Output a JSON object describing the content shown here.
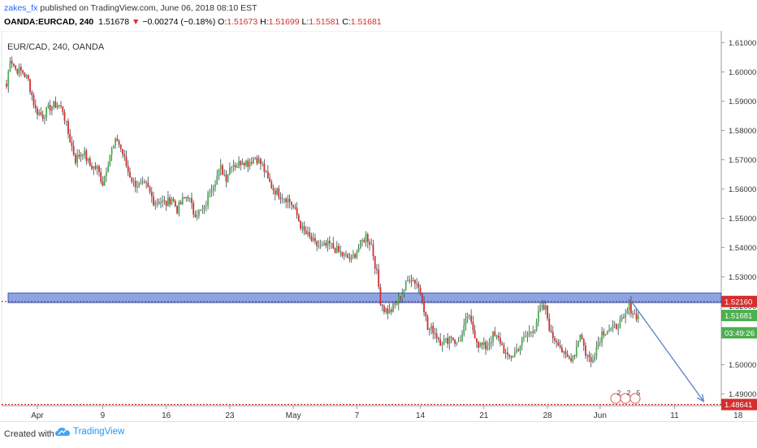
{
  "header": {
    "author": "zakes_fx",
    "published_text": "published on TradingView.com, June 06, 2018 08:10 EST",
    "symbol_interval": "OANDA:EURCAD, 240",
    "last": "1.51678",
    "change": "−0.00274 (−0.18%)",
    "o_label": "O:",
    "o_value": "1.51673",
    "h_label": "H:",
    "h_value": "1.51699",
    "l_label": "L:",
    "l_value": "1.51581",
    "c_label": "C:",
    "c_value": "1.51681"
  },
  "chart_label": "EUR/CAD, 240, OANDA",
  "footer": {
    "created_with": "Created with",
    "brand": "TradingView"
  },
  "colors": {
    "up": "#4caf50",
    "down": "#d32f2f",
    "wick": "#37474f",
    "zone_fill": "#5b7fd6",
    "zone_border": "#3c5fb8",
    "red_dotted": "#d32f2f",
    "arrow": "#5b7fc7",
    "axis_text": "#333333"
  },
  "chart_data": {
    "type": "candlestick",
    "ylim": [
      1.486,
      1.614
    ],
    "y_ticks": [
      "1.61000",
      "1.60000",
      "1.59000",
      "1.58000",
      "1.57000",
      "1.56000",
      "1.55000",
      "1.54000",
      "1.53000",
      "1.52000",
      "1.51000",
      "1.50000",
      "1.49000"
    ],
    "x_ticks": [
      {
        "label": "Apr",
        "bar": 17
      },
      {
        "label": "9",
        "bar": 53
      },
      {
        "label": "16",
        "bar": 88
      },
      {
        "label": "23",
        "bar": 123
      },
      {
        "label": "May",
        "bar": 158
      },
      {
        "label": "7",
        "bar": 193
      },
      {
        "label": "14",
        "bar": 228
      },
      {
        "label": "21",
        "bar": 263
      },
      {
        "label": "28",
        "bar": 298
      },
      {
        "label": "Jun",
        "bar": 327
      },
      {
        "label": "11",
        "bar": 368
      },
      {
        "label": "18",
        "bar": 403
      }
    ],
    "price_labels": [
      {
        "value": "1.52160",
        "price": 1.5216,
        "color": "#d32f2f"
      },
      {
        "value": "1.51681",
        "price": 1.51681,
        "color": "#4caf50"
      },
      {
        "value": "03:49:26",
        "price": 1.5109,
        "color": "#4caf50"
      },
      {
        "value": "1.48641",
        "price": 1.48641,
        "color": "#d32f2f"
      }
    ],
    "resistance_zone": [
      1.5212,
      1.5245
    ],
    "dotted_levels": [
      1.5216,
      1.48641
    ],
    "projection": {
      "from_bar": 344,
      "from_price": 1.5218,
      "to_bar": 384,
      "to_price": 1.4875
    },
    "event_markers": [
      "2",
      "2",
      "5"
    ],
    "anchors": [
      [
        0,
        1.595
      ],
      [
        2,
        1.605
      ],
      [
        5,
        1.601
      ],
      [
        9,
        1.6
      ],
      [
        12,
        1.597
      ],
      [
        16,
        1.587
      ],
      [
        20,
        1.585
      ],
      [
        24,
        1.588
      ],
      [
        28,
        1.589
      ],
      [
        31,
        1.587
      ],
      [
        34,
        1.579
      ],
      [
        38,
        1.57
      ],
      [
        42,
        1.573
      ],
      [
        46,
        1.568
      ],
      [
        50,
        1.567
      ],
      [
        53,
        1.562
      ],
      [
        57,
        1.572
      ],
      [
        61,
        1.577
      ],
      [
        64,
        1.572
      ],
      [
        67,
        1.566
      ],
      [
        70,
        1.562
      ],
      [
        74,
        1.561
      ],
      [
        77,
        1.561
      ],
      [
        81,
        1.556
      ],
      [
        84,
        1.556
      ],
      [
        88,
        1.555
      ],
      [
        91,
        1.557
      ],
      [
        94,
        1.553
      ],
      [
        97,
        1.556
      ],
      [
        100,
        1.558
      ],
      [
        103,
        1.552
      ],
      [
        106,
        1.552
      ],
      [
        109,
        1.553
      ],
      [
        112,
        1.56
      ],
      [
        115,
        1.563
      ],
      [
        118,
        1.567
      ],
      [
        121,
        1.564
      ],
      [
        124,
        1.569
      ],
      [
        127,
        1.568
      ],
      [
        130,
        1.57
      ],
      [
        133,
        1.569
      ],
      [
        137,
        1.571
      ],
      [
        141,
        1.568
      ],
      [
        144,
        1.563
      ],
      [
        147,
        1.56
      ],
      [
        151,
        1.558
      ],
      [
        154,
        1.557
      ],
      [
        157,
        1.555
      ],
      [
        160,
        1.551
      ],
      [
        163,
        1.546
      ],
      [
        166,
        1.544
      ],
      [
        170,
        1.541
      ],
      [
        174,
        1.54
      ],
      [
        178,
        1.541
      ],
      [
        182,
        1.539
      ],
      [
        186,
        1.537
      ],
      [
        190,
        1.536
      ],
      [
        194,
        1.54
      ],
      [
        198,
        1.544
      ],
      [
        201,
        1.541
      ],
      [
        204,
        1.531
      ],
      [
        206,
        1.522
      ],
      [
        208,
        1.519
      ],
      [
        211,
        1.518
      ],
      [
        215,
        1.521
      ],
      [
        219,
        1.526
      ],
      [
        222,
        1.53
      ],
      [
        226,
        1.528
      ],
      [
        229,
        1.523
      ],
      [
        232,
        1.512
      ],
      [
        235,
        1.512
      ],
      [
        239,
        1.508
      ],
      [
        242,
        1.508
      ],
      [
        245,
        1.51
      ],
      [
        248,
        1.507
      ],
      [
        251,
        1.51
      ],
      [
        254,
        1.517
      ],
      [
        257,
        1.512
      ],
      [
        260,
        1.507
      ],
      [
        264,
        1.506
      ],
      [
        268,
        1.51
      ],
      [
        272,
        1.508
      ],
      [
        276,
        1.502
      ],
      [
        280,
        1.504
      ],
      [
        284,
        1.508
      ],
      [
        288,
        1.511
      ],
      [
        291,
        1.513
      ],
      [
        294,
        1.519
      ],
      [
        297,
        1.519
      ],
      [
        300,
        1.51
      ],
      [
        304,
        1.508
      ],
      [
        307,
        1.503
      ],
      [
        310,
        1.502
      ],
      [
        313,
        1.504
      ],
      [
        316,
        1.511
      ],
      [
        319,
        1.504
      ],
      [
        322,
        1.501
      ],
      [
        325,
        1.506
      ],
      [
        328,
        1.511
      ],
      [
        331,
        1.512
      ],
      [
        334,
        1.512
      ],
      [
        337,
        1.514
      ],
      [
        340,
        1.515
      ],
      [
        343,
        1.52
      ],
      [
        346,
        1.517
      ],
      [
        348,
        1.5168
      ]
    ]
  }
}
